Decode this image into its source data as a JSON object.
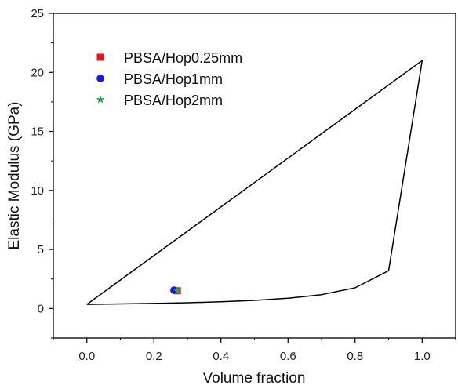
{
  "chart_data": {
    "type": "scatter",
    "xlabel": "Volume fraction",
    "ylabel": "Elastic Modulus (GPa)",
    "xlim": [
      -0.1,
      1.1
    ],
    "ylim": [
      -2.5,
      25
    ],
    "xticks": [
      0.0,
      0.2,
      0.4,
      0.6,
      0.8,
      1.0
    ],
    "xtick_labels": [
      "0.0",
      "0.2",
      "0.4",
      "0.6",
      "0.8",
      "1.0"
    ],
    "yticks": [
      0,
      5,
      10,
      15,
      20,
      25
    ],
    "ytick_labels": [
      "0",
      "5",
      "10",
      "15",
      "20",
      "25"
    ],
    "grid": false,
    "legend_position": "top-left",
    "bound_curves": [
      {
        "kind": "upper",
        "x": [
          0.0,
          1.0
        ],
        "y": [
          0.35,
          21.0
        ]
      },
      {
        "kind": "lower",
        "x": [
          0.0,
          0.1,
          0.2,
          0.3,
          0.4,
          0.5,
          0.6,
          0.7,
          0.8,
          0.9,
          1.0
        ],
        "y": [
          0.35,
          0.39,
          0.43,
          0.49,
          0.57,
          0.69,
          0.87,
          1.17,
          1.75,
          3.2,
          21.0
        ]
      }
    ],
    "series": [
      {
        "name": "PBSA/Hop0.25mm",
        "marker": "square",
        "color": "#e8161c",
        "x": [
          0.27
        ],
        "y": [
          1.5
        ]
      },
      {
        "name": "PBSA/Hop1mm",
        "marker": "circle",
        "color": "#1418e0",
        "x": [
          0.26
        ],
        "y": [
          1.55
        ]
      },
      {
        "name": "PBSA/Hop2mm",
        "marker": "star",
        "color": "#2e9e5b",
        "x": [
          0.27
        ],
        "y": [
          1.5
        ]
      }
    ]
  }
}
